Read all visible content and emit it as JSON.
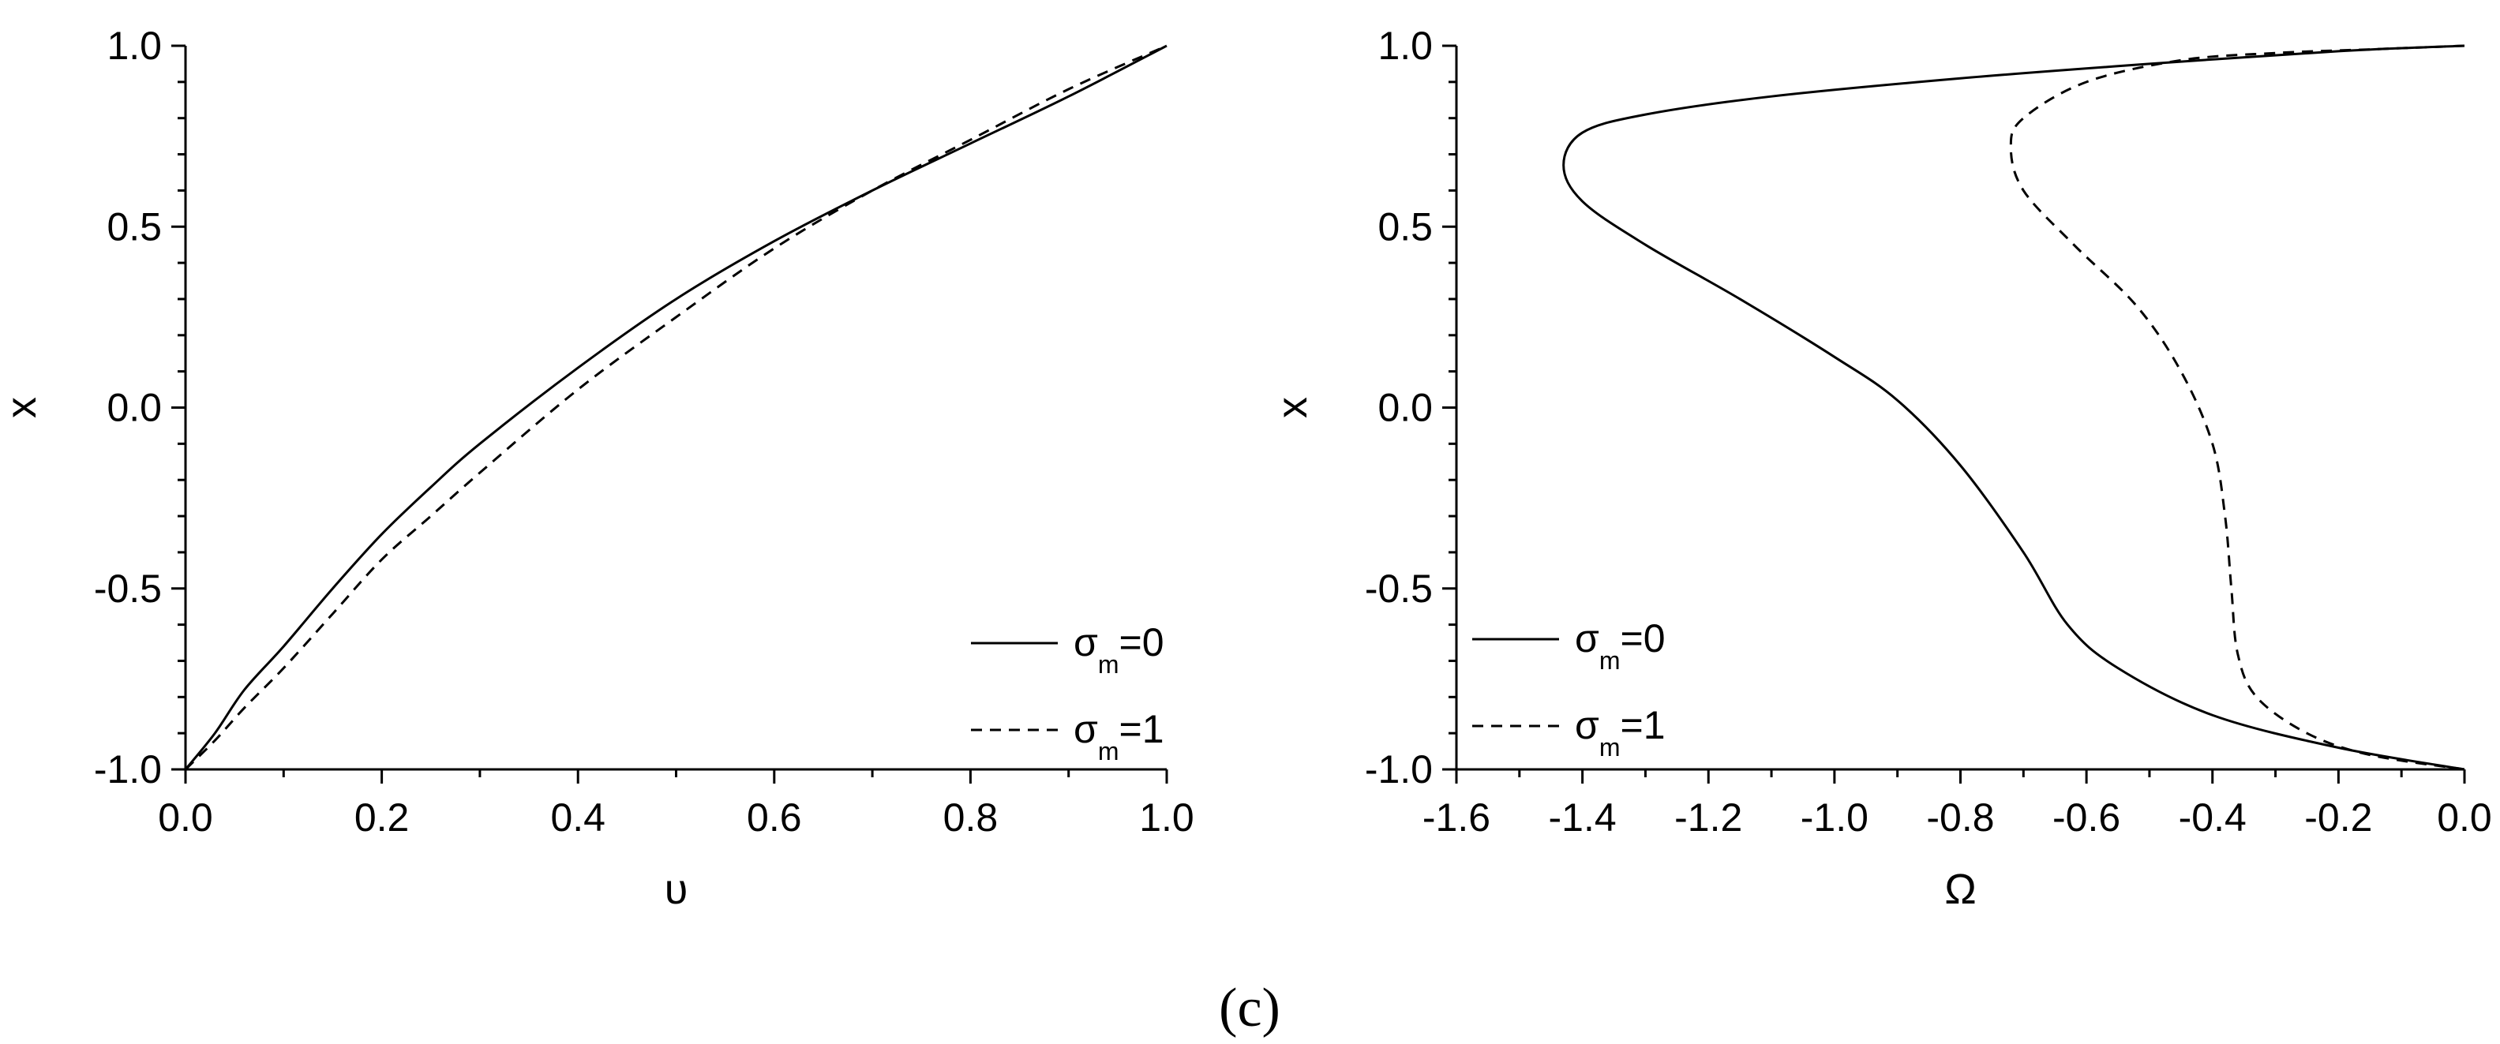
{
  "figure_label": "(c)",
  "chart_data": [
    {
      "type": "line",
      "xlabel": "υ",
      "ylabel": "x",
      "xlim": [
        0.0,
        1.0
      ],
      "ylim": [
        -1.0,
        1.0
      ],
      "x_ticks": [
        "0.0",
        "0.2",
        "0.4",
        "0.6",
        "0.8",
        "1.0"
      ],
      "y_ticks": [
        "-1.0",
        "-0.5",
        "0.0",
        "0.5",
        "1.0"
      ],
      "grid": false,
      "legend": "bottom-right",
      "series": [
        {
          "name": "σm=0",
          "name_main": "σ",
          "name_sub": "m",
          "name_tail": "=0",
          "style": "solid",
          "x": [
            0.0,
            0.03,
            0.06,
            0.1,
            0.15,
            0.2,
            0.25,
            0.3,
            0.4,
            0.5,
            0.6,
            0.7,
            0.8,
            0.9,
            1.0
          ],
          "y": [
            -1.0,
            -0.9,
            -0.78,
            -0.66,
            -0.5,
            -0.35,
            -0.22,
            -0.1,
            0.11,
            0.3,
            0.46,
            0.6,
            0.73,
            0.86,
            1.0
          ]
        },
        {
          "name": "σm=1",
          "name_main": "σ",
          "name_sub": "m",
          "name_tail": "=1",
          "style": "dashed",
          "x": [
            0.0,
            0.03,
            0.06,
            0.1,
            0.15,
            0.2,
            0.25,
            0.3,
            0.4,
            0.5,
            0.6,
            0.7,
            0.8,
            0.9,
            1.0
          ],
          "y": [
            -1.0,
            -0.92,
            -0.83,
            -0.72,
            -0.57,
            -0.42,
            -0.3,
            -0.18,
            0.05,
            0.25,
            0.44,
            0.6,
            0.74,
            0.88,
            1.0
          ]
        }
      ]
    },
    {
      "type": "line",
      "xlabel": "Ω",
      "ylabel": "x",
      "xlim": [
        -1.6,
        0.0
      ],
      "ylim": [
        -1.0,
        1.0
      ],
      "x_ticks": [
        "-1.6",
        "-1.4",
        "-1.2",
        "-1.0",
        "-0.8",
        "-0.6",
        "-0.4",
        "-0.2",
        "0.0"
      ],
      "y_ticks": [
        "-1.0",
        "-0.5",
        "0.0",
        "0.5",
        "1.0"
      ],
      "grid": false,
      "legend": "bottom-left",
      "series": [
        {
          "name": "σm=0",
          "name_main": "σ",
          "name_sub": "m",
          "name_tail": "=0",
          "style": "solid",
          "x": [
            0.0,
            -0.2,
            -0.5,
            -0.8,
            -1.1,
            -1.3,
            -1.4,
            -1.43,
            -1.4,
            -1.3,
            -1.15,
            -1.0,
            -0.9,
            -0.8,
            -0.7,
            -0.63,
            -0.55,
            -0.4,
            -0.2,
            0.0
          ],
          "y": [
            1.0,
            0.985,
            0.95,
            0.91,
            0.86,
            0.81,
            0.76,
            0.67,
            0.57,
            0.45,
            0.3,
            0.14,
            0.02,
            -0.16,
            -0.4,
            -0.6,
            -0.72,
            -0.85,
            -0.94,
            -1.0
          ]
        },
        {
          "name": "σm=1",
          "name_main": "σ",
          "name_sub": "m",
          "name_tail": "=1",
          "style": "dashed",
          "x": [
            0.0,
            -0.15,
            -0.3,
            -0.45,
            -0.6,
            -0.7,
            -0.72,
            -0.7,
            -0.62,
            -0.52,
            -0.45,
            -0.4,
            -0.38,
            -0.37,
            -0.36,
            -0.33,
            -0.25,
            -0.15,
            0.0
          ],
          "y": [
            1.0,
            0.99,
            0.98,
            0.96,
            0.9,
            0.8,
            0.72,
            0.6,
            0.45,
            0.28,
            0.1,
            -0.1,
            -0.3,
            -0.5,
            -0.68,
            -0.8,
            -0.9,
            -0.96,
            -1.0
          ]
        }
      ]
    }
  ]
}
